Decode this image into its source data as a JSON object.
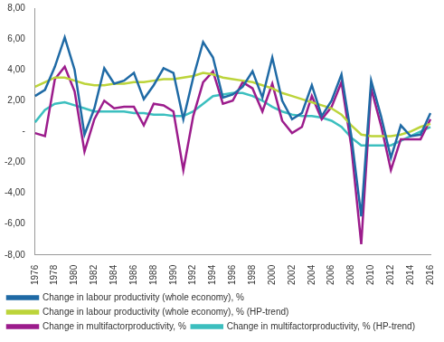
{
  "chart_data": {
    "type": "line",
    "categories": [
      "1976",
      null,
      "1978",
      null,
      "1980",
      null,
      "1982",
      null,
      "1984",
      null,
      "1986",
      null,
      "1988",
      null,
      "1990",
      null,
      "1992",
      null,
      "1994",
      null,
      "1996",
      null,
      "1998",
      null,
      "2000",
      null,
      "2002",
      null,
      "2004",
      null,
      "2006",
      null,
      "2008",
      null,
      "2010",
      null,
      "2012",
      null,
      "2014",
      null,
      "2016"
    ],
    "series": [
      {
        "name": "Change in labour productivity (whole economy), %",
        "color": "#1f6aa5",
        "values": [
          2.3,
          2.7,
          4.2,
          6.1,
          4.0,
          -0.2,
          1.5,
          4.1,
          3.1,
          3.3,
          3.8,
          2.1,
          3.0,
          4.1,
          3.8,
          0.8,
          3.5,
          5.8,
          4.8,
          2.2,
          2.4,
          2.9,
          3.9,
          2.2,
          4.8,
          2.0,
          0.8,
          1.2,
          3.0,
          1.0,
          2.0,
          3.7,
          -0.3,
          -5.5,
          3.3,
          1.0,
          -1.7,
          0.4,
          -0.3,
          -0.2,
          1.2
        ]
      },
      {
        "name": "Change in labour productivity (whole economy), % (HP-trend)",
        "color": "#bcd43a",
        "values": [
          2.9,
          3.2,
          3.5,
          3.5,
          3.3,
          3.1,
          3.0,
          3.0,
          3.1,
          3.1,
          3.2,
          3.2,
          3.3,
          3.4,
          3.4,
          3.5,
          3.6,
          3.8,
          3.7,
          3.5,
          3.4,
          3.3,
          3.2,
          3.0,
          2.8,
          2.5,
          2.3,
          2.1,
          1.9,
          1.7,
          1.5,
          1.1,
          0.4,
          -0.2,
          -0.3,
          -0.3,
          -0.3,
          -0.2,
          0.0,
          0.3,
          0.5
        ]
      },
      {
        "name": "Change in multifactorproductivity, %",
        "color": "#9c1c8c",
        "values": [
          -0.1,
          -0.3,
          3.4,
          4.2,
          2.6,
          -1.3,
          0.8,
          2.0,
          1.5,
          1.6,
          1.6,
          0.4,
          1.8,
          1.7,
          1.3,
          -2.5,
          1.0,
          3.2,
          3.9,
          1.8,
          2.0,
          3.2,
          2.8,
          1.3,
          3.1,
          0.7,
          -0.1,
          0.3,
          2.3,
          0.8,
          1.6,
          3.2,
          -1.0,
          -7.3,
          2.8,
          0.4,
          -2.5,
          -0.5,
          -0.5,
          -0.5,
          0.8
        ]
      },
      {
        "name": "Change in multifactorproductivity, % (HP-trend)",
        "color": "#3cbfbf",
        "values": [
          0.6,
          1.4,
          1.8,
          1.9,
          1.7,
          1.5,
          1.3,
          1.3,
          1.3,
          1.3,
          1.2,
          1.2,
          1.1,
          1.1,
          1.0,
          1.0,
          1.3,
          1.8,
          2.3,
          2.4,
          2.5,
          2.5,
          2.3,
          2.0,
          1.6,
          1.3,
          1.1,
          1.0,
          1.0,
          0.9,
          0.7,
          0.3,
          -0.4,
          -0.9,
          -0.9,
          -0.9,
          -0.9,
          -0.6,
          -0.3,
          0.0,
          0.3
        ]
      }
    ],
    "ylim": [
      -8,
      8
    ],
    "yticks": [
      {
        "value": -8,
        "label": "-8,00"
      },
      {
        "value": -6,
        "label": "-6,00"
      },
      {
        "value": -4,
        "label": "-4,00"
      },
      {
        "value": -2,
        "label": "-2,00"
      },
      {
        "value": 0,
        "label": "-"
      },
      {
        "value": 2,
        "label": "2,00"
      },
      {
        "value": 4,
        "label": "4,00"
      },
      {
        "value": 6,
        "label": "6,00"
      },
      {
        "value": 8,
        "label": "8,00"
      }
    ],
    "grid": false,
    "legend": "bottom"
  }
}
